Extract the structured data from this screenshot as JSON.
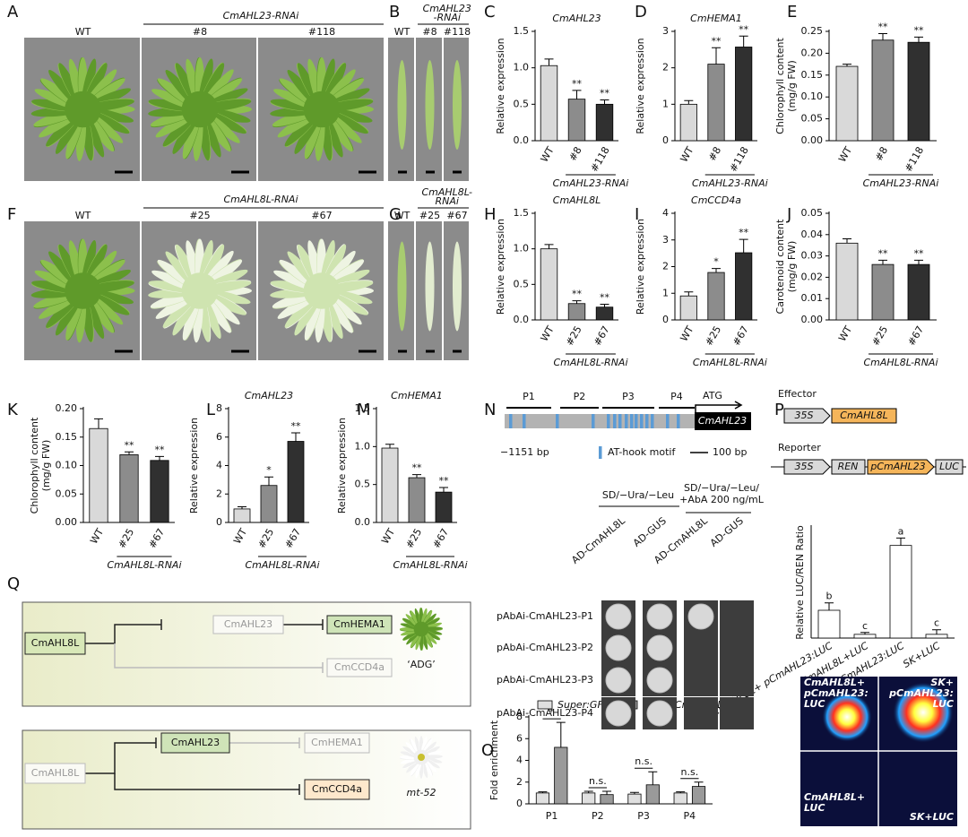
{
  "panel_labels": [
    "A",
    "B",
    "C",
    "D",
    "E",
    "F",
    "G",
    "H",
    "I",
    "J",
    "K",
    "L",
    "M",
    "N",
    "O",
    "P",
    "Q"
  ],
  "photos": [
    {
      "labels": [
        "WT",
        "#8",
        "#118"
      ],
      "group": "CmAHL23-RNAi"
    },
    {
      "labels": [
        "WT",
        "#8",
        "#118"
      ],
      "group": [
        "CmAHL23",
        "-RNAi"
      ]
    },
    {
      "labels": [
        "WT",
        "#25",
        "#67"
      ],
      "group": "CmAHL8L-RNAi"
    },
    {
      "labels": [
        "WT",
        "#25",
        "#67"
      ],
      "group": [
        "CmAHL8L-",
        "RNAi"
      ]
    }
  ],
  "chart_data": [
    {
      "type": "bar",
      "title": "CmAHL23",
      "ylabel": "Relative expression",
      "categories": [
        "WT",
        "#8",
        "#118"
      ],
      "values": [
        1.03,
        0.57,
        0.5
      ],
      "errors": [
        0.09,
        0.12,
        0.06
      ],
      "annotations": [
        null,
        "**",
        "**"
      ],
      "group_label": "CmAHL23-RNAi",
      "colors": [
        "#d9d9d9",
        "#8c8c8c",
        "#303030"
      ],
      "ylim": [
        0,
        1.5
      ],
      "yticks": [
        {
          "value": 0,
          "label": "0.0"
        },
        0.5,
        {
          "value": 1,
          "label": "1.0"
        },
        1.5
      ]
    },
    {
      "type": "bar",
      "title": "CmHEMA1",
      "ylabel": "Relative expression",
      "categories": [
        "WT",
        "#8",
        "#118"
      ],
      "values": [
        1.0,
        2.1,
        2.57
      ],
      "errors": [
        0.1,
        0.45,
        0.3
      ],
      "annotations": [
        null,
        "**",
        "**"
      ],
      "group_label": "CmAHL23-RNAi",
      "colors": [
        "#d9d9d9",
        "#8c8c8c",
        "#303030"
      ],
      "ylim": [
        0,
        3
      ],
      "yticks": [
        0,
        1,
        2,
        3
      ]
    },
    {
      "type": "bar",
      "ylabel": [
        "Chlorophyll content",
        "(mg/g FW)"
      ],
      "categories": [
        "WT",
        "#8",
        "#118"
      ],
      "values": [
        0.17,
        0.23,
        0.225
      ],
      "errors": [
        0.005,
        0.015,
        0.012
      ],
      "annotations": [
        null,
        "**",
        "**"
      ],
      "group_label": "CmAHL23-RNAi",
      "colors": [
        "#d9d9d9",
        "#8c8c8c",
        "#303030"
      ],
      "ylim": [
        0,
        0.25
      ],
      "yticks": [
        {
          "value": 0,
          "label": "0.00"
        },
        0.05,
        {
          "value": 0.1,
          "label": "0.10"
        },
        0.15,
        {
          "value": 0.2,
          "label": "0.20"
        },
        0.25
      ]
    },
    {
      "type": "bar",
      "title": "CmAHL8L",
      "ylabel": "Relative expression",
      "categories": [
        "WT",
        "#25",
        "#67"
      ],
      "values": [
        1.0,
        0.23,
        0.18
      ],
      "errors": [
        0.06,
        0.04,
        0.04
      ],
      "annotations": [
        null,
        "**",
        "**"
      ],
      "group_label": "CmAHL8L-RNAi",
      "colors": [
        "#d9d9d9",
        "#8c8c8c",
        "#303030"
      ],
      "ylim": [
        0,
        1.5
      ],
      "yticks": [
        {
          "value": 0,
          "label": "0.0"
        },
        0.5,
        {
          "value": 1,
          "label": "1.0"
        },
        1.5
      ]
    },
    {
      "type": "bar",
      "title": "CmCCD4a",
      "ylabel": "Relative expression",
      "categories": [
        "WT",
        "#25",
        "#67"
      ],
      "values": [
        0.9,
        1.78,
        2.52
      ],
      "errors": [
        0.15,
        0.15,
        0.5
      ],
      "annotations": [
        null,
        "*",
        "**"
      ],
      "group_label": "CmAHL8L-RNAi",
      "colors": [
        "#d9d9d9",
        "#8c8c8c",
        "#303030"
      ],
      "ylim": [
        0,
        4
      ],
      "yticks": [
        0,
        1,
        2,
        3,
        4
      ]
    },
    {
      "type": "bar",
      "ylabel": [
        "Carotenoid content",
        "(mg/g FW)"
      ],
      "categories": [
        "WT",
        "#25",
        "#67"
      ],
      "values": [
        0.036,
        0.026,
        0.026
      ],
      "errors": [
        0.002,
        0.002,
        0.002
      ],
      "annotations": [
        null,
        "**",
        "**"
      ],
      "group_label": "CmAHL8L-RNAi",
      "colors": [
        "#d9d9d9",
        "#8c8c8c",
        "#303030"
      ],
      "ylim": [
        0,
        0.05
      ],
      "yticks": [
        {
          "value": 0,
          "label": "0.00"
        },
        0.01,
        0.02,
        0.03,
        0.04,
        0.05
      ]
    },
    {
      "type": "bar",
      "ylabel": [
        "Chlorophyll content",
        "(mg/g FW)"
      ],
      "categories": [
        "WT",
        "#25",
        "#67"
      ],
      "values": [
        0.165,
        0.119,
        0.109
      ],
      "errors": [
        0.017,
        0.005,
        0.007
      ],
      "annotations": [
        null,
        "**",
        "**"
      ],
      "group_label": "CmAHL8L-RNAi",
      "colors": [
        "#d9d9d9",
        "#8c8c8c",
        "#303030"
      ],
      "ylim": [
        0,
        0.2
      ],
      "yticks": [
        {
          "value": 0,
          "label": "0.00"
        },
        0.05,
        {
          "value": 0.1,
          "label": "0.10"
        },
        0.15,
        {
          "value": 0.2,
          "label": "0.20"
        }
      ]
    },
    {
      "type": "bar",
      "title": "CmAHL23",
      "ylabel": "Relative expression",
      "categories": [
        "WT",
        "#25",
        "#67"
      ],
      "values": [
        0.95,
        2.6,
        5.7
      ],
      "errors": [
        0.15,
        0.6,
        0.6
      ],
      "annotations": [
        null,
        "*",
        "**"
      ],
      "group_label": "CmAHL8L-RNAi",
      "colors": [
        "#d9d9d9",
        "#8c8c8c",
        "#303030"
      ],
      "ylim": [
        0,
        8
      ],
      "yticks": [
        0,
        2,
        4,
        6,
        8
      ]
    },
    {
      "type": "bar",
      "title": "CmHEMA1",
      "ylabel": "Relative expression",
      "categories": [
        "WT",
        "#25",
        "#67"
      ],
      "values": [
        0.98,
        0.59,
        0.4
      ],
      "errors": [
        0.05,
        0.04,
        0.06
      ],
      "annotations": [
        null,
        "**",
        "**"
      ],
      "group_label": "CmAHL8L-RNAi",
      "colors": [
        "#d9d9d9",
        "#8c8c8c",
        "#303030"
      ],
      "ylim": [
        0,
        1.5
      ],
      "yticks": [
        {
          "value": 0,
          "label": "0.0"
        },
        0.5,
        {
          "value": 1,
          "label": "1.0"
        },
        1.5
      ]
    },
    {
      "type": "grouped_bar",
      "ylabel": "Fold enrichment",
      "categories": [
        "P1",
        "P2",
        "P3",
        "P4"
      ],
      "series": [
        {
          "name": "Super:GFP",
          "color": "#e0e0e0",
          "values": [
            1.0,
            1.0,
            0.9,
            1.0
          ],
          "errors": [
            0.1,
            0.15,
            0.15,
            0.1
          ]
        },
        {
          "name": "Super:CmAHL8L-GFP",
          "color": "#9a9a9a",
          "values": [
            5.2,
            0.85,
            1.75,
            1.6
          ],
          "errors": [
            2.3,
            0.3,
            1.2,
            0.4
          ]
        }
      ],
      "annotations": [
        "*",
        "n.s.",
        "n.s.",
        "n.s."
      ],
      "ylim": [
        0,
        8
      ],
      "yticks": [
        0,
        2,
        4,
        6,
        8
      ]
    },
    {
      "type": "bar",
      "ylabel": "Relative LUC/REN Ratio",
      "categories": [
        "CmAHL8L+ pCmAHL23:LUC",
        "CmAHL8L+LUC",
        "SK+pCmAHL23:LUC",
        "SK+LUC"
      ],
      "values": [
        0.3,
        0.04,
        1.0,
        0.04
      ],
      "errors": [
        0.08,
        0.02,
        0.08,
        0.05
      ],
      "annotations": [
        "b",
        "c",
        "a",
        "c"
      ],
      "colors": [
        "#ffffff",
        "#ffffff",
        "#ffffff",
        "#ffffff"
      ],
      "ylim": [
        0,
        1.2
      ]
    }
  ],
  "promoter": {
    "fragments": [
      "P1",
      "P2",
      "P3",
      "P4"
    ],
    "start": "ATG",
    "gene": "CmAHL23",
    "length": "−1151 bp",
    "motif": "AT-hook motif",
    "scale": "100 bp"
  },
  "y1h": {
    "conditions": [
      [
        "SD/−Ura/−Leu"
      ],
      [
        "SD/−Ura/−Leu/",
        "+AbA 200 ng/mL"
      ]
    ],
    "columns": [
      "AD-CmAHL8L",
      "AD-GUS",
      "AD-CmAHL8L",
      "AD-GUS"
    ],
    "rows": [
      "pAbAi-CmAHL23-P1",
      "pAbAi-CmAHL23-P2",
      "pAbAi-CmAHL23-P3",
      "pAbAi-CmAHL23-P4"
    ]
  },
  "constructs": {
    "effector": {
      "label": "Effector",
      "parts": [
        "35S",
        "CmAHL8L"
      ]
    },
    "reporter": {
      "label": "Reporter",
      "parts": [
        "35S",
        "REN",
        "pCmAHL23",
        "LUC"
      ]
    }
  },
  "luc_image": [
    [
      "CmAHL8L+",
      "pCmAHL23:",
      "LUC"
    ],
    [
      "SK+",
      "pCmAHL23:",
      "LUC"
    ],
    [
      "CmAHL8L+",
      "LUC"
    ],
    [
      "SK+LUC"
    ]
  ],
  "model": [
    {
      "nodes": [
        "CmAHL8L",
        "CmAHL23",
        "CmHEMA1",
        "CmCCD4a"
      ],
      "caption": "‘ADG’"
    },
    {
      "nodes": [
        "CmAHL8L",
        "CmAHL23",
        "CmHEMA1",
        "CmCCD4a"
      ],
      "caption": "mt-52"
    }
  ]
}
